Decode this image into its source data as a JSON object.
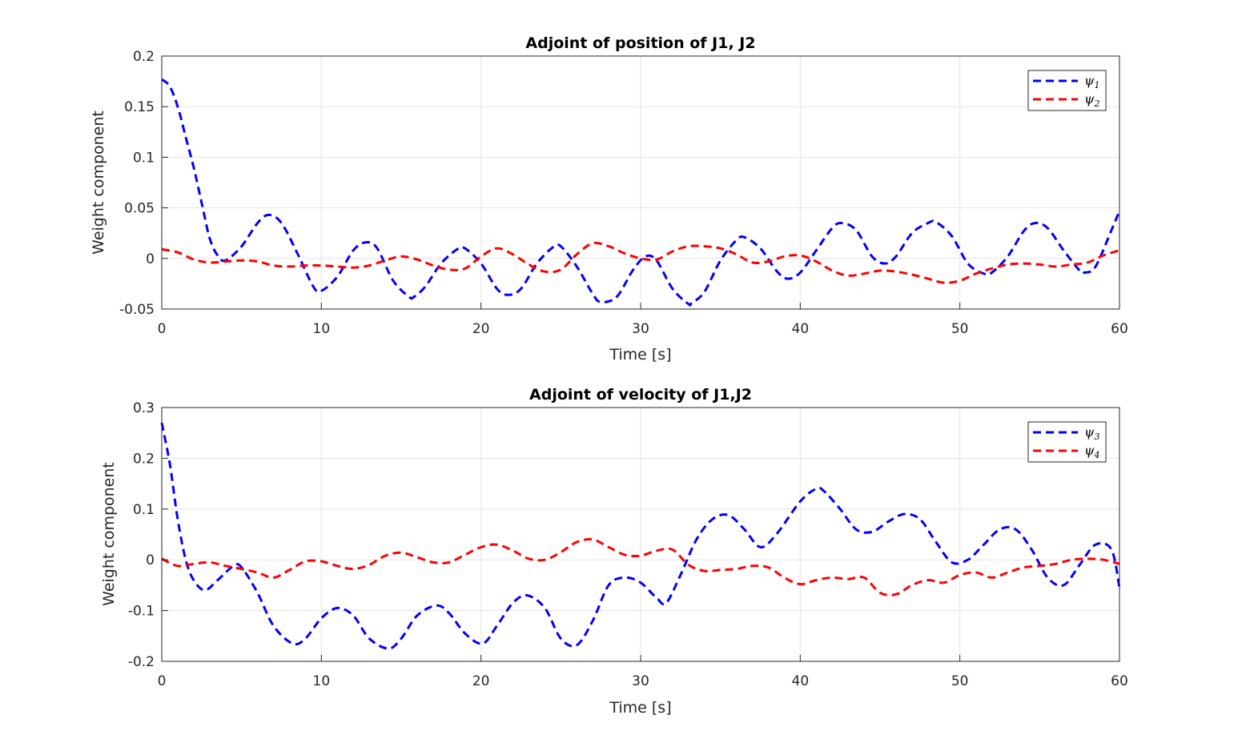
{
  "chart_data": [
    {
      "type": "line",
      "title": "Adjoint of position of J1, J2",
      "xlabel": "Time [s]",
      "ylabel": "Weight component",
      "xlim": [
        0,
        60
      ],
      "ylim": [
        -0.05,
        0.2
      ],
      "xticks": [
        0,
        10,
        20,
        30,
        40,
        50,
        60
      ],
      "xtick_labels": [
        "0",
        "10",
        "20",
        "30",
        "40",
        "50",
        "60"
      ],
      "yticks": [
        -0.05,
        0,
        0.05,
        0.1,
        0.15,
        0.2
      ],
      "ytick_labels": [
        "-0.05",
        "0",
        "0.05",
        "0.1",
        "0.15",
        "0.2"
      ],
      "grid": true,
      "legend_position": "top-right",
      "series": [
        {
          "name": "ψ1",
          "color": "#0000ff",
          "line_style": "dashed",
          "x": [
            0,
            0.5,
            1,
            1.5,
            2,
            2.5,
            3,
            3.5,
            4,
            5,
            6,
            6.7,
            7.5,
            8.5,
            9.5,
            10,
            11,
            12,
            12.8,
            13.5,
            14.5,
            15.5,
            15.8,
            16.5,
            17.5,
            18.5,
            19,
            20,
            21,
            21.7,
            22.5,
            23.5,
            24.5,
            25,
            26,
            27,
            27.5,
            28.5,
            29.5,
            30.3,
            31,
            32,
            33,
            33.2,
            34,
            35,
            36,
            36.5,
            37.5,
            38.5,
            39.2,
            40,
            41,
            42,
            42.6,
            43.5,
            44.5,
            45.3,
            46,
            47,
            48,
            48.5,
            49.5,
            50.5,
            51.5,
            52,
            53,
            54,
            54.7,
            55.5,
            56.5,
            57.5,
            57.8,
            58.5,
            59.5,
            60
          ],
          "y": [
            0.177,
            0.17,
            0.15,
            0.12,
            0.09,
            0.055,
            0.02,
            0.003,
            -0.002,
            0.012,
            0.035,
            0.043,
            0.035,
            0.005,
            -0.028,
            -0.032,
            -0.018,
            0.008,
            0.016,
            0.01,
            -0.022,
            -0.038,
            -0.038,
            -0.028,
            -0.005,
            0.009,
            0.01,
            -0.005,
            -0.03,
            -0.036,
            -0.03,
            -0.005,
            0.011,
            0.012,
            -0.008,
            -0.035,
            -0.043,
            -0.038,
            -0.012,
            0.002,
            -0.002,
            -0.03,
            -0.045,
            -0.044,
            -0.033,
            -0.002,
            0.018,
            0.021,
            0.01,
            -0.012,
            -0.02,
            -0.014,
            0.008,
            0.03,
            0.035,
            0.028,
            0.002,
            -0.005,
            0.002,
            0.025,
            0.035,
            0.036,
            0.022,
            -0.005,
            -0.015,
            -0.014,
            0.002,
            0.027,
            0.035,
            0.03,
            0.008,
            -0.012,
            -0.014,
            -0.008,
            0.028,
            0.047
          ]
        },
        {
          "name": "ψ2",
          "color": "#ff0000",
          "line_style": "dashed",
          "x": [
            0,
            1,
            2,
            3,
            4,
            5,
            6,
            7,
            8,
            9,
            10,
            11,
            12,
            13,
            14,
            15,
            16,
            17,
            18,
            19,
            20,
            21,
            22,
            23,
            24,
            25,
            26,
            27,
            28,
            29,
            30,
            31,
            32,
            33,
            34,
            35,
            36,
            37,
            38,
            39,
            40,
            41,
            42,
            43,
            44,
            45,
            46,
            47,
            48,
            49,
            50,
            51,
            52,
            53,
            54,
            55,
            56,
            57,
            58,
            59,
            60
          ],
          "y": [
            0.009,
            0.006,
            -0.001,
            -0.004,
            -0.003,
            -0.002,
            -0.003,
            -0.007,
            -0.008,
            -0.007,
            -0.007,
            -0.008,
            -0.009,
            -0.007,
            -0.002,
            0.002,
            -0.001,
            -0.007,
            -0.011,
            -0.01,
            0.002,
            0.01,
            0.004,
            -0.006,
            -0.013,
            -0.011,
            0.004,
            0.015,
            0.012,
            0.005,
            0.0,
            -0.001,
            0.007,
            0.012,
            0.012,
            0.01,
            0.004,
            -0.004,
            -0.003,
            0.002,
            0.003,
            -0.003,
            -0.012,
            -0.017,
            -0.015,
            -0.012,
            -0.013,
            -0.016,
            -0.02,
            -0.024,
            -0.022,
            -0.015,
            -0.01,
            -0.006,
            -0.005,
            -0.006,
            -0.008,
            -0.006,
            -0.004,
            0.003,
            0.008
          ]
        }
      ]
    },
    {
      "type": "line",
      "title": "Adjoint of velocity of J1,J2",
      "xlabel": "Time [s]",
      "ylabel": "Weight component",
      "xlim": [
        0,
        60
      ],
      "ylim": [
        -0.2,
        0.3
      ],
      "xticks": [
        0,
        10,
        20,
        30,
        40,
        50,
        60
      ],
      "xtick_labels": [
        "0",
        "10",
        "20",
        "30",
        "40",
        "50",
        "60"
      ],
      "yticks": [
        -0.2,
        -0.1,
        0,
        0.1,
        0.2,
        0.3
      ],
      "ytick_labels": [
        "-0.2",
        "-0.1",
        "0",
        "0.1",
        "0.2",
        "0.3"
      ],
      "grid": true,
      "legend_position": "top-right",
      "series": [
        {
          "name": "ψ3",
          "color": "#0000ff",
          "line_style": "dashed",
          "x": [
            0,
            0.5,
            1,
            1.5,
            2,
            2.7,
            3.5,
            4.5,
            5,
            6,
            7,
            8.2,
            9,
            10,
            11,
            12,
            13,
            14.2,
            15,
            16,
            17.2,
            18,
            19,
            20.1,
            21,
            22,
            22.9,
            24,
            25,
            26,
            27,
            28,
            29,
            30,
            31,
            31.6,
            32.5,
            33.5,
            34.5,
            35.5,
            36.5,
            37.5,
            38.5,
            40,
            41,
            41.5,
            42.5,
            43.5,
            44.5,
            45.5,
            46.5,
            47.5,
            48.5,
            49.5,
            50.5,
            51.5,
            52.5,
            53.5,
            54.5,
            55.5,
            56.5,
            57.5,
            58.5,
            59.5,
            60
          ],
          "y": [
            0.27,
            0.19,
            0.08,
            0.0,
            -0.04,
            -0.06,
            -0.04,
            -0.012,
            -0.015,
            -0.065,
            -0.13,
            -0.165,
            -0.155,
            -0.115,
            -0.095,
            -0.11,
            -0.155,
            -0.175,
            -0.155,
            -0.11,
            -0.09,
            -0.105,
            -0.145,
            -0.165,
            -0.13,
            -0.085,
            -0.07,
            -0.095,
            -0.155,
            -0.168,
            -0.12,
            -0.05,
            -0.035,
            -0.045,
            -0.075,
            -0.085,
            -0.03,
            0.04,
            0.08,
            0.088,
            0.06,
            0.025,
            0.05,
            0.115,
            0.14,
            0.135,
            0.1,
            0.06,
            0.055,
            0.075,
            0.09,
            0.08,
            0.035,
            -0.005,
            0.0,
            0.03,
            0.06,
            0.06,
            0.02,
            -0.035,
            -0.05,
            -0.01,
            0.03,
            0.02,
            -0.055
          ]
        },
        {
          "name": "ψ4",
          "color": "#ff0000",
          "line_style": "dashed",
          "x": [
            0,
            1,
            2,
            3,
            4,
            5,
            6,
            7,
            8,
            9,
            10,
            11,
            12,
            13,
            14,
            15,
            16,
            17,
            18,
            19,
            20,
            21,
            22,
            23,
            24,
            25,
            26,
            27,
            28,
            29,
            30,
            31,
            32,
            33,
            34,
            35,
            36,
            37,
            38,
            39,
            40,
            41,
            42,
            43,
            44,
            45,
            46,
            47,
            48,
            49,
            50,
            51,
            52,
            53,
            54,
            55,
            56,
            57,
            58,
            59,
            60
          ],
          "y": [
            0.002,
            -0.012,
            -0.008,
            -0.005,
            -0.012,
            -0.018,
            -0.025,
            -0.035,
            -0.02,
            -0.003,
            -0.003,
            -0.012,
            -0.018,
            -0.01,
            0.008,
            0.014,
            0.005,
            -0.005,
            -0.005,
            0.01,
            0.025,
            0.03,
            0.018,
            0.002,
            0.0,
            0.015,
            0.035,
            0.04,
            0.025,
            0.01,
            0.008,
            0.018,
            0.02,
            -0.01,
            -0.022,
            -0.02,
            -0.018,
            -0.012,
            -0.015,
            -0.035,
            -0.048,
            -0.04,
            -0.035,
            -0.038,
            -0.035,
            -0.065,
            -0.068,
            -0.05,
            -0.04,
            -0.045,
            -0.03,
            -0.025,
            -0.035,
            -0.025,
            -0.015,
            -0.012,
            -0.008,
            0.0,
            0.002,
            0.0,
            -0.008
          ]
        }
      ]
    }
  ]
}
